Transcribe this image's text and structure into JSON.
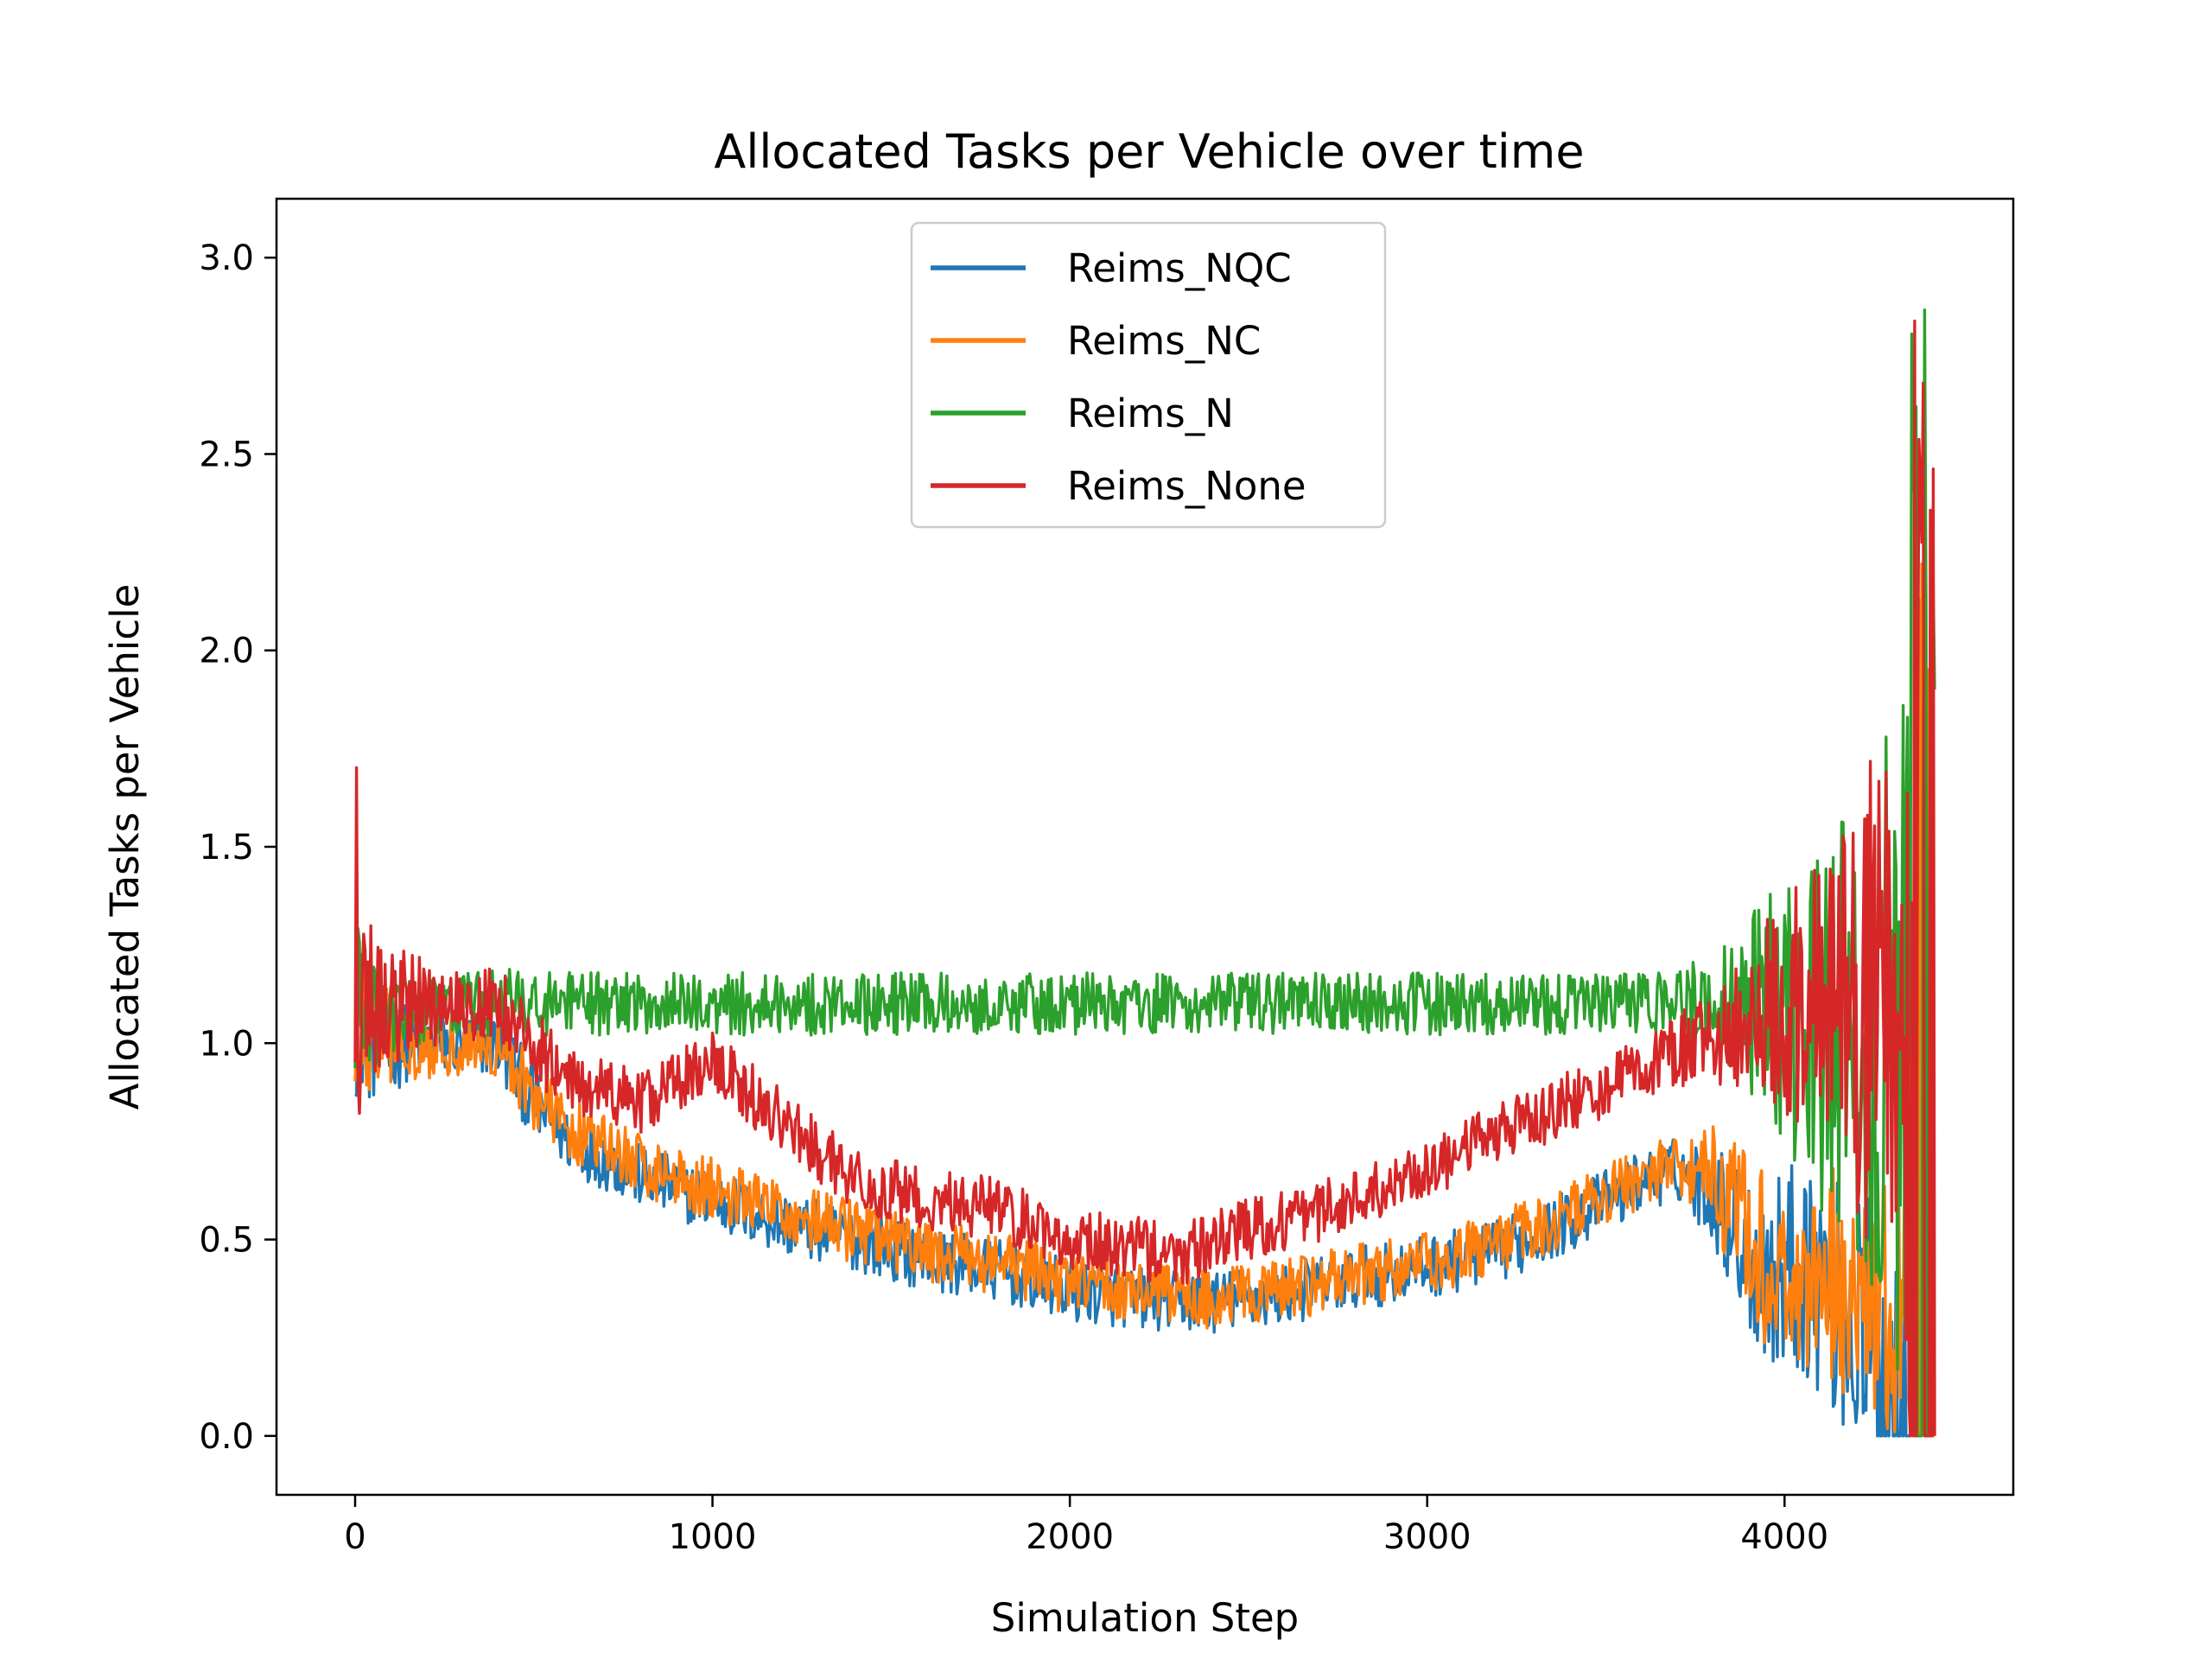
{
  "chart_data": {
    "type": "line",
    "title": "Allocated Tasks per Vehicle over time",
    "xlabel": "Simulation Step",
    "ylabel": "Allocated Tasks per Vehicle",
    "xlim": [
      -220,
      4640
    ],
    "ylim": [
      -0.15,
      3.15
    ],
    "xticks": [
      0,
      1000,
      2000,
      3000,
      4000
    ],
    "xtick_labels": [
      "0",
      "1000",
      "2000",
      "3000",
      "4000"
    ],
    "yticks": [
      0.0,
      0.5,
      1.0,
      1.5,
      2.0,
      2.5,
      3.0
    ],
    "ytick_labels": [
      "0.0",
      "0.5",
      "1.0",
      "1.5",
      "2.0",
      "2.5",
      "3.0"
    ],
    "grid": false,
    "legend_position": "upper-center",
    "x_range": [
      0,
      4420
    ],
    "series": [
      {
        "name": "Reims_NQC",
        "color": "#1f77b4",
        "x": [
          0,
          20,
          60,
          150,
          300,
          400,
          500,
          600,
          800,
          1000,
          1200,
          1400,
          1600,
          1800,
          2000,
          2200,
          2400,
          2600,
          2800,
          3000,
          3200,
          3400,
          3600,
          3700,
          3800,
          3880,
          3950,
          4050,
          4150,
          4250,
          4320,
          4380,
          4420
        ],
        "y": [
          1.1,
          1.05,
          1.0,
          1.0,
          1.0,
          1.0,
          0.85,
          0.75,
          0.66,
          0.6,
          0.54,
          0.5,
          0.45,
          0.42,
          0.37,
          0.35,
          0.34,
          0.36,
          0.4,
          0.43,
          0.47,
          0.55,
          0.65,
          0.68,
          0.62,
          0.5,
          0.4,
          0.45,
          0.35,
          0.2,
          0.1,
          0.4,
          0.2
        ],
        "noise": [
          0.15,
          0.12,
          0.1,
          0.06,
          0.05,
          0.06,
          0.06,
          0.05,
          0.05,
          0.05,
          0.05,
          0.05,
          0.05,
          0.05,
          0.05,
          0.05,
          0.05,
          0.05,
          0.05,
          0.05,
          0.05,
          0.05,
          0.05,
          0.05,
          0.08,
          0.12,
          0.15,
          0.18,
          0.2,
          0.25,
          0.25,
          0.5,
          0.5
        ]
      },
      {
        "name": "Reims_NC",
        "color": "#ff7f0e",
        "x": [
          0,
          20,
          60,
          150,
          300,
          400,
          500,
          600,
          800,
          1000,
          1200,
          1400,
          1600,
          1800,
          2000,
          2200,
          2400,
          2600,
          2800,
          3000,
          3200,
          3400,
          3600,
          3700,
          3800,
          3880,
          3950,
          4050,
          4150,
          4250,
          4320,
          4380,
          4420
        ],
        "y": [
          1.1,
          1.05,
          1.0,
          1.0,
          1.0,
          1.0,
          0.87,
          0.78,
          0.69,
          0.63,
          0.57,
          0.52,
          0.47,
          0.44,
          0.39,
          0.37,
          0.35,
          0.37,
          0.41,
          0.44,
          0.49,
          0.57,
          0.66,
          0.7,
          0.66,
          0.55,
          0.42,
          0.4,
          0.4,
          0.35,
          0.3,
          0.5,
          0.3
        ],
        "noise": [
          0.15,
          0.12,
          0.1,
          0.06,
          0.05,
          0.06,
          0.06,
          0.05,
          0.05,
          0.05,
          0.05,
          0.05,
          0.05,
          0.05,
          0.05,
          0.05,
          0.05,
          0.05,
          0.05,
          0.05,
          0.05,
          0.05,
          0.05,
          0.05,
          0.08,
          0.12,
          0.15,
          0.18,
          0.18,
          0.2,
          0.2,
          0.4,
          0.4
        ]
      },
      {
        "name": "Reims_N",
        "color": "#2ca02c",
        "x": [
          0,
          20,
          60,
          150,
          300,
          400,
          500,
          600,
          800,
          1000,
          1200,
          1400,
          1600,
          1800,
          2000,
          2200,
          2400,
          2600,
          2800,
          3000,
          3200,
          3400,
          3600,
          3700,
          3800,
          3880,
          3950,
          4050,
          4150,
          4250,
          4320,
          4380,
          4420
        ],
        "y": [
          1.1,
          1.08,
          1.06,
          1.08,
          1.1,
          1.1,
          1.1,
          1.1,
          1.1,
          1.1,
          1.1,
          1.1,
          1.1,
          1.1,
          1.1,
          1.1,
          1.1,
          1.1,
          1.1,
          1.1,
          1.1,
          1.1,
          1.1,
          1.1,
          1.1,
          1.1,
          1.1,
          1.05,
          1.0,
          1.0,
          1.0,
          1.1,
          1.0
        ],
        "noise": [
          0.15,
          0.12,
          0.08,
          0.06,
          0.05,
          0.06,
          0.05,
          0.05,
          0.05,
          0.05,
          0.05,
          0.05,
          0.05,
          0.05,
          0.05,
          0.05,
          0.05,
          0.05,
          0.05,
          0.05,
          0.05,
          0.05,
          0.05,
          0.06,
          0.08,
          0.12,
          0.18,
          0.25,
          0.35,
          0.45,
          0.6,
          1.0,
          1.0
        ]
      },
      {
        "name": "Reims_None",
        "color": "#d62728",
        "x": [
          0,
          20,
          60,
          150,
          300,
          400,
          500,
          600,
          800,
          1000,
          1200,
          1400,
          1600,
          1800,
          2000,
          2200,
          2300,
          2400,
          2600,
          2800,
          3000,
          3200,
          3400,
          3600,
          3700,
          3800,
          3880,
          3950,
          4050,
          4150,
          4250,
          4320,
          4380,
          4420
        ],
        "y": [
          1.3,
          1.2,
          1.1,
          1.1,
          1.1,
          1.1,
          1.0,
          0.9,
          0.85,
          0.95,
          0.8,
          0.65,
          0.6,
          0.58,
          0.5,
          0.48,
          0.45,
          0.5,
          0.55,
          0.6,
          0.68,
          0.77,
          0.85,
          0.93,
          0.98,
          1.0,
          1.05,
          1.1,
          1.1,
          1.1,
          1.1,
          1.2,
          1.1,
          1.0
        ],
        "noise": [
          0.4,
          0.2,
          0.12,
          0.08,
          0.06,
          0.06,
          0.06,
          0.05,
          0.05,
          0.05,
          0.05,
          0.05,
          0.05,
          0.05,
          0.05,
          0.05,
          0.05,
          0.05,
          0.05,
          0.05,
          0.05,
          0.05,
          0.05,
          0.05,
          0.06,
          0.08,
          0.1,
          0.15,
          0.2,
          0.28,
          0.4,
          0.6,
          0.9,
          1.0
        ]
      }
    ]
  }
}
